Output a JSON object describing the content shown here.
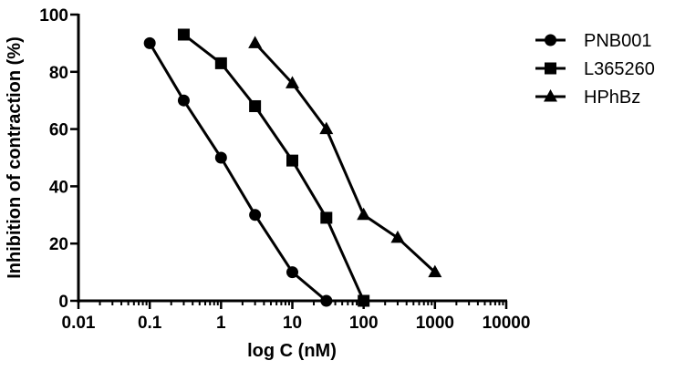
{
  "chart_data": {
    "type": "line",
    "title": "",
    "xlabel": "log C (nM)",
    "ylabel": "Inhibition of contraction (%)",
    "xscale": "log",
    "xlim": [
      0.01,
      10000
    ],
    "ylim": [
      0,
      100
    ],
    "xticks": [
      "0.01",
      "0.1",
      "1",
      "10",
      "100",
      "1000",
      "10000"
    ],
    "yticks": [
      "0",
      "20",
      "40",
      "60",
      "80",
      "100"
    ],
    "grid": false,
    "legend_position": "top-right",
    "series": [
      {
        "name": "PNB001",
        "marker": "circle",
        "x": [
          0.1,
          0.3,
          1,
          3,
          10,
          30
        ],
        "y": [
          90,
          70,
          50,
          30,
          10,
          0
        ]
      },
      {
        "name": "L365260",
        "marker": "square",
        "x": [
          0.3,
          1,
          3,
          10,
          30,
          100
        ],
        "y": [
          93,
          83,
          68,
          49,
          29,
          0
        ]
      },
      {
        "name": "HPhBz",
        "marker": "triangle",
        "x": [
          3,
          10,
          30,
          100,
          300,
          1000
        ],
        "y": [
          90,
          76,
          60,
          30,
          22,
          10
        ]
      }
    ]
  },
  "legend": {
    "items": [
      {
        "label": "PNB001",
        "marker": "circle"
      },
      {
        "label": "L365260",
        "marker": "square"
      },
      {
        "label": "HPhBz",
        "marker": "triangle"
      }
    ]
  },
  "colors": {
    "line": "#000000",
    "background": "#ffffff"
  }
}
